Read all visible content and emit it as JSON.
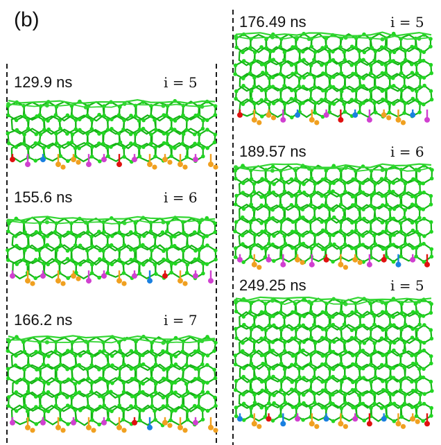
{
  "figure": {
    "panel_label": "(b)"
  },
  "snapshots": [
    {
      "time": "129.9 ns",
      "index": "i = 5",
      "edge": [
        "red",
        "magenta",
        "blue",
        "orange",
        "orange",
        "magenta",
        "magenta",
        "red",
        "magenta",
        "orange",
        "orange",
        "orange",
        "magenta",
        "orange"
      ]
    },
    {
      "time": "155.6 ns",
      "index": "i = 6",
      "edge": [
        "magenta",
        "orange",
        "magenta",
        "orange",
        "orange",
        "magenta",
        "magenta",
        "orange",
        "magenta",
        "blue",
        "red",
        "orange",
        "magenta",
        "magenta"
      ]
    },
    {
      "time": "166.2 ns",
      "index": "i = 7",
      "edge": [
        "magenta",
        "orange",
        "magenta",
        "orange",
        "magenta",
        "orange",
        "magenta",
        "orange",
        "red",
        "blue",
        "orange",
        "orange",
        "magenta",
        "orange"
      ]
    },
    {
      "time": "176.49 ns",
      "index": "i = 5",
      "edge": [
        "red",
        "orange",
        "orange",
        "magenta",
        "blue",
        "orange",
        "magenta",
        "red",
        "blue",
        "magenta",
        "orange",
        "orange",
        "blue",
        "magenta"
      ]
    },
    {
      "time": "189.57 ns",
      "index": "i = 6",
      "edge": [
        "magenta",
        "orange",
        "magenta",
        "magenta",
        "orange",
        "magenta",
        "red",
        "orange",
        "orange",
        "magenta",
        "red",
        "blue",
        "magenta",
        "red"
      ]
    },
    {
      "time": "249.25 ns",
      "index": "i = 5",
      "edge": [
        "blue",
        "orange",
        "red",
        "blue",
        "magenta",
        "orange",
        "blue",
        "orange",
        "magenta",
        "red",
        "blue",
        "orange",
        "orange",
        "red"
      ]
    }
  ],
  "colors": {
    "lattice": "#22d622",
    "lattice_stroke": "#15b515",
    "top_layer": "#33d633",
    "red": "#e01010",
    "magenta": "#d040d0",
    "blue": "#1a80e0",
    "orange": "#f0a020",
    "divider": "#000000"
  }
}
